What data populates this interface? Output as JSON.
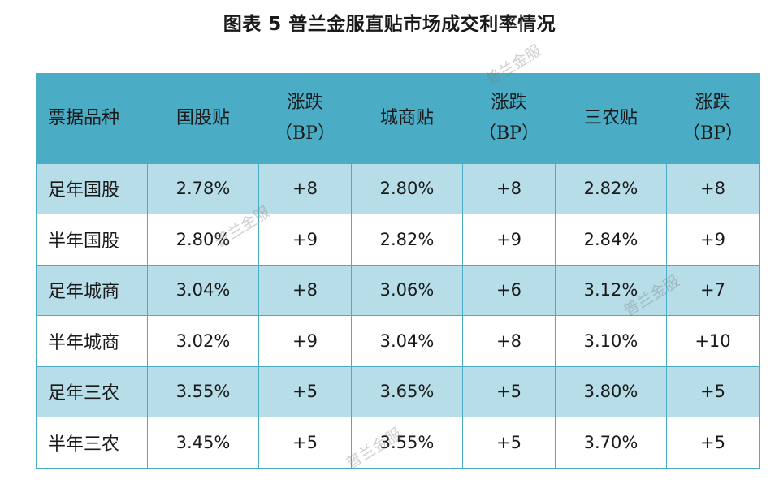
{
  "title": "图表 5  普兰金服直贴市场成交利率情况",
  "table": {
    "headers": [
      [
        "票据品种"
      ],
      [
        "国股贴"
      ],
      [
        "涨跌",
        "（BP）"
      ],
      [
        "城商贴"
      ],
      [
        "涨跌",
        "（BP）"
      ],
      [
        "三农贴"
      ],
      [
        "涨跌",
        "（BP）"
      ]
    ],
    "rows": [
      [
        "足年国股",
        "2.78%",
        "+8",
        "2.80%",
        "+8",
        "2.82%",
        "+8"
      ],
      [
        "半年国股",
        "2.80%",
        "+9",
        "2.82%",
        "+9",
        "2.84%",
        "+9"
      ],
      [
        "足年城商",
        "3.04%",
        "+8",
        "3.06%",
        "+6",
        "3.12%",
        "+7"
      ],
      [
        "半年城商",
        "3.02%",
        "+9",
        "3.04%",
        "+8",
        "3.10%",
        "+10"
      ],
      [
        "足年三农",
        "3.55%",
        "+5",
        "3.65%",
        "+5",
        "3.80%",
        "+5"
      ],
      [
        "半年三农",
        "3.45%",
        "+5",
        "3.55%",
        "+5",
        "3.70%",
        "+5"
      ]
    ]
  },
  "watermark": "普兰金服",
  "colors": {
    "header_bg": "#4bacc6",
    "shaded_row_bg": "#b7dde8",
    "border": "#4bacc6"
  }
}
